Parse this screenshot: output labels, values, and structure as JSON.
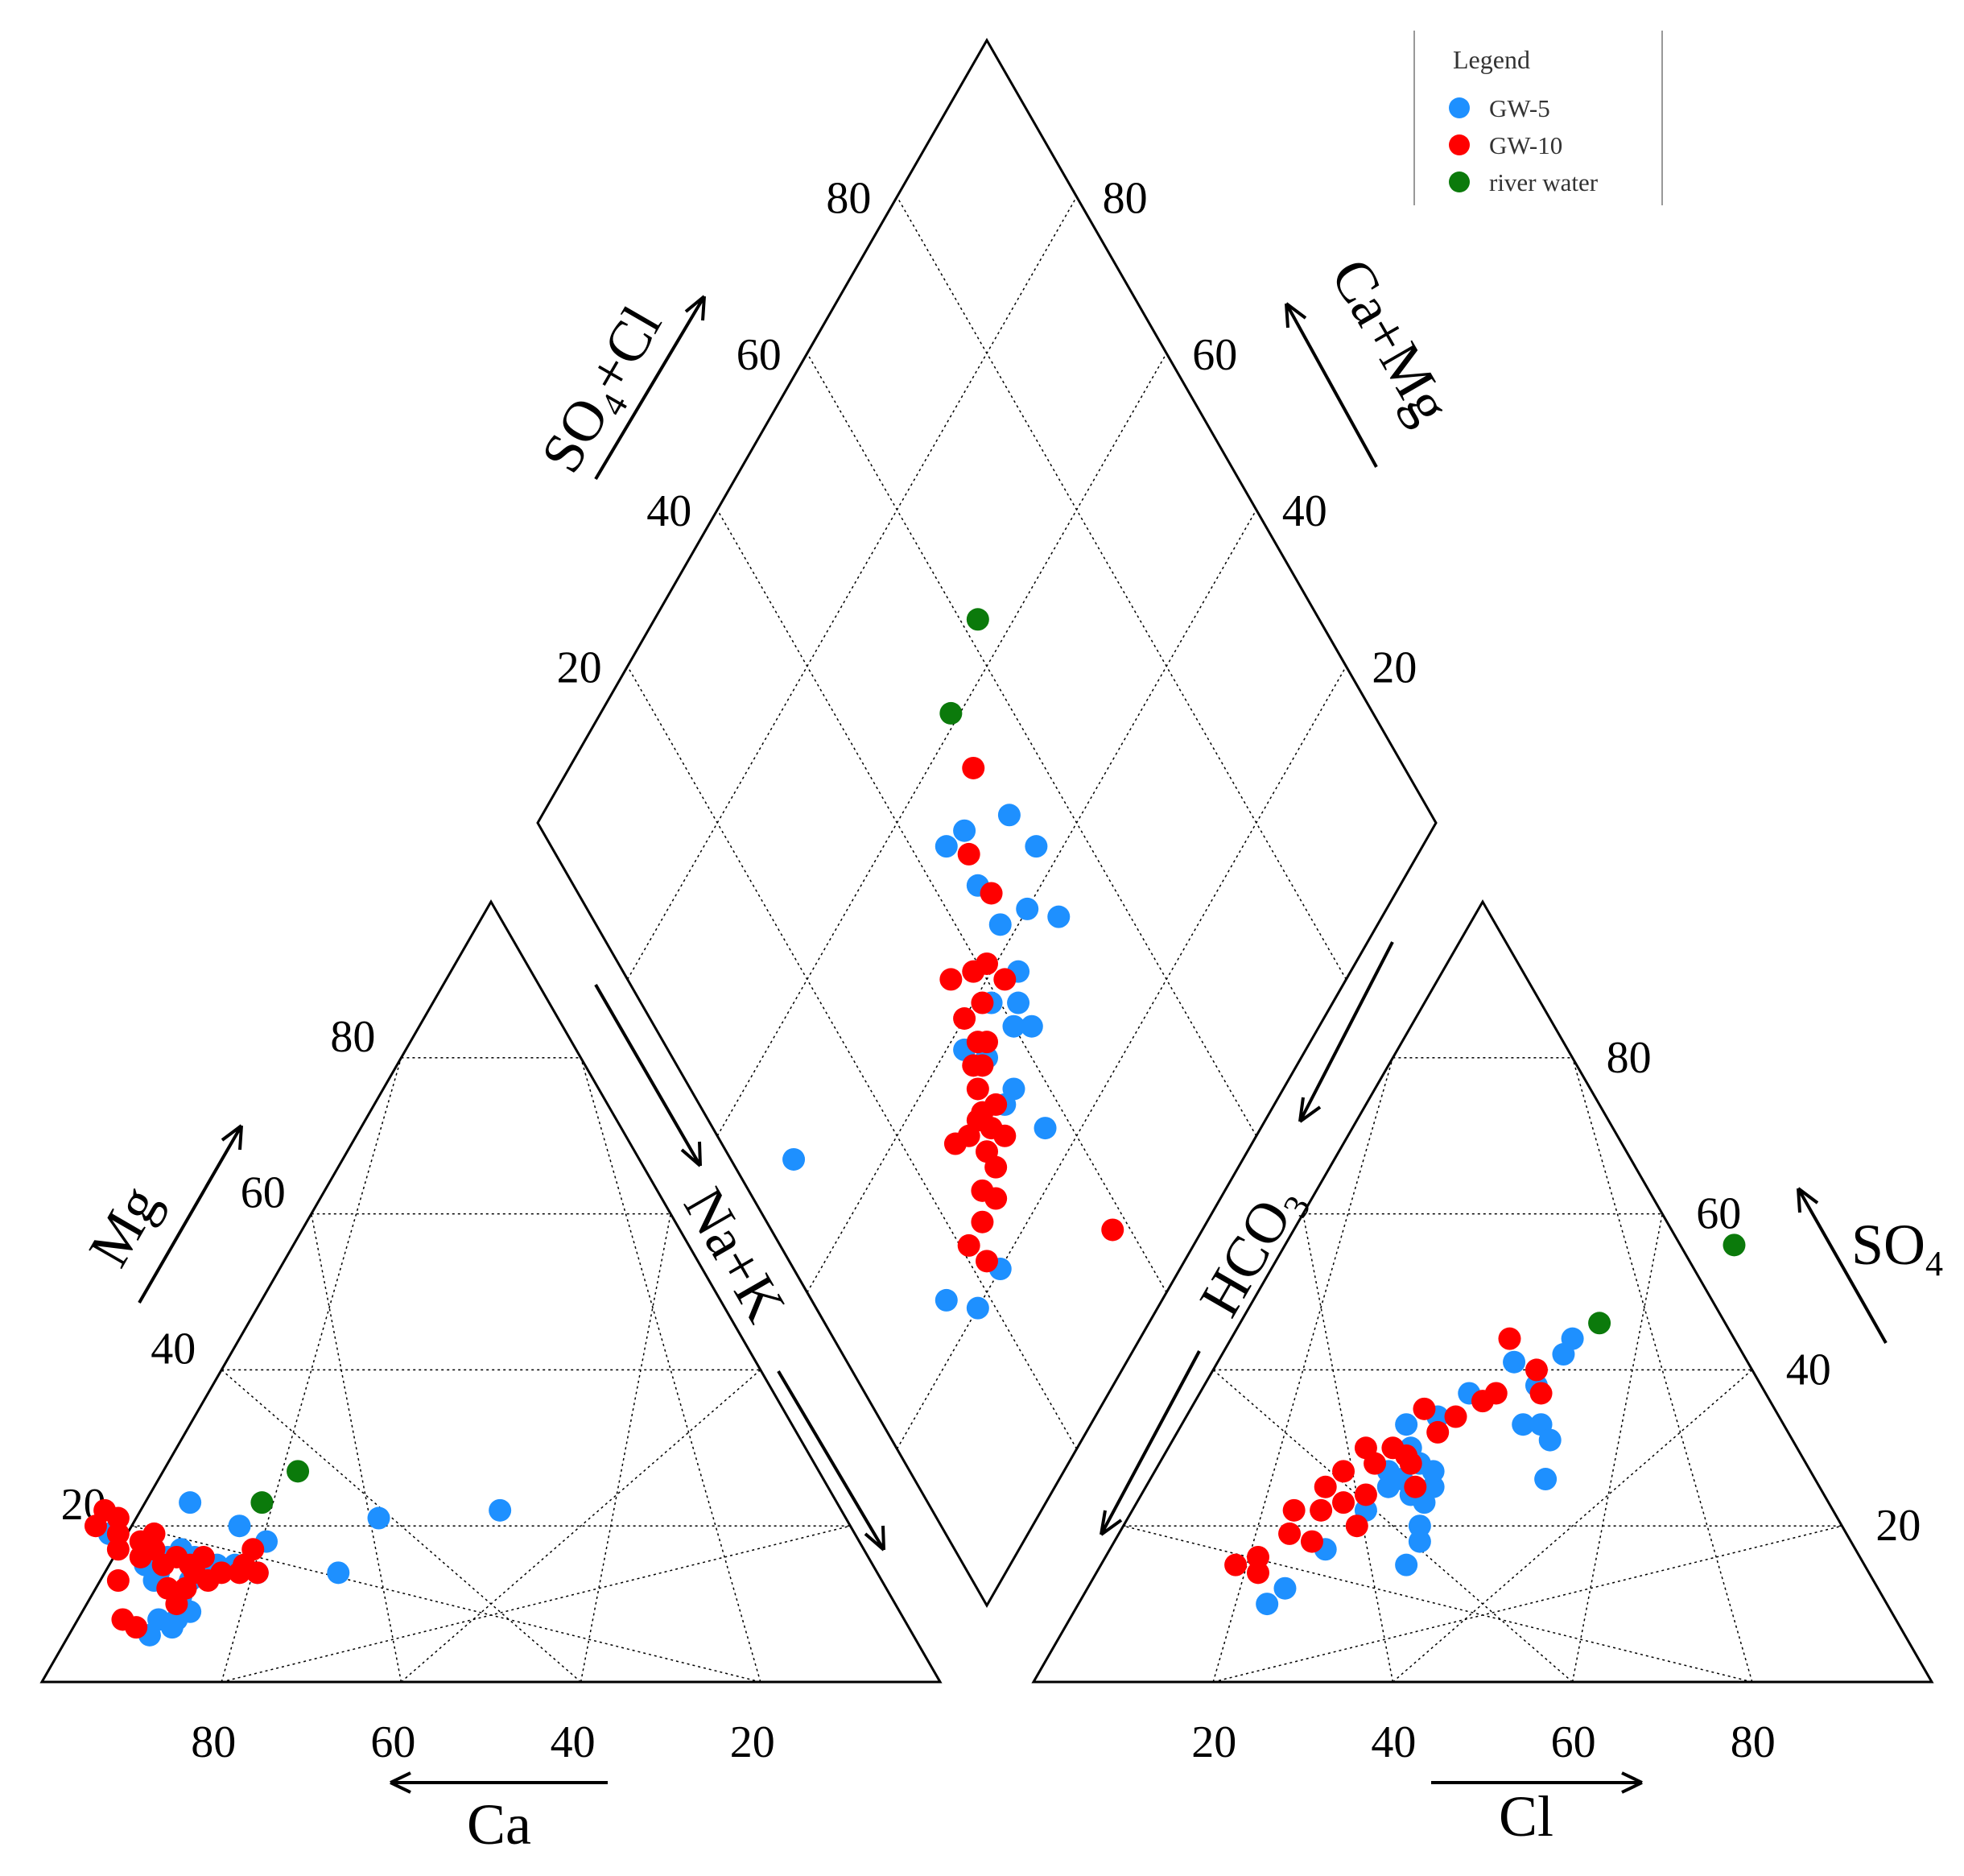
{
  "chart_data": {
    "type": "piper",
    "title": "",
    "legend": {
      "title": "Legend",
      "placement": "top-right",
      "entries": [
        {
          "name": "GW-5",
          "color": "#1e90ff"
        },
        {
          "name": "GW-10",
          "color": "#ff0000"
        },
        {
          "name": "river water",
          "color": "#0b7a0b"
        }
      ]
    },
    "cation_triangle": {
      "axes": {
        "mg_label": "Mg",
        "ca_label": "Ca",
        "nak_label": "Na+K"
      },
      "mg_ticks": [
        "20",
        "40",
        "60",
        "80"
      ],
      "ca_ticks": [
        "80",
        "60",
        "40",
        "20"
      ],
      "range": [
        0,
        100
      ]
    },
    "anion_triangle": {
      "axes": {
        "so4_label": "SO",
        "so4_sub": "4",
        "cl_label": "Cl",
        "hco3_label": "HCO",
        "hco3_sub": "3"
      },
      "so4_ticks": [
        "20",
        "40",
        "60",
        "80"
      ],
      "cl_ticks": [
        "20",
        "40",
        "60",
        "80"
      ],
      "range": [
        0,
        100
      ]
    },
    "diamond": {
      "axes": {
        "left_label_a": "SO",
        "left_sub": "4",
        "left_label_b": "+Cl",
        "right_label": "Ca+Mg"
      },
      "left_ticks": [
        "20",
        "40",
        "60",
        "80"
      ],
      "right_ticks": [
        "20",
        "40",
        "60",
        "80"
      ],
      "range": [
        0,
        100
      ]
    },
    "series": [
      {
        "name": "GW-5",
        "cation": [
          [
            81,
            15
          ],
          [
            80,
            14
          ],
          [
            81,
            13
          ],
          [
            78,
            16
          ],
          [
            76,
            17
          ],
          [
            75,
            16
          ],
          [
            73,
            15
          ],
          [
            71,
            15
          ],
          [
            69,
            14
          ],
          [
            66,
            18
          ],
          [
            72,
            23
          ],
          [
            68,
            20
          ],
          [
            60,
            14
          ],
          [
            52,
            21
          ],
          [
            38,
            22
          ],
          [
            83,
            8
          ],
          [
            81,
            8
          ],
          [
            79,
            9
          ],
          [
            83,
            19
          ],
          [
            85,
            6
          ],
          [
            76,
            15
          ],
          [
            74,
            14
          ],
          [
            79,
            11
          ],
          [
            77,
            13
          ],
          [
            82,
            7
          ]
        ],
        "anion": [
          [
            34,
            18
          ],
          [
            24,
            17
          ],
          [
            26,
            22
          ],
          [
            30,
            24
          ],
          [
            32,
            25
          ],
          [
            31,
            27
          ],
          [
            29,
            28
          ],
          [
            28,
            26
          ],
          [
            27,
            30
          ],
          [
            25,
            33
          ],
          [
            28,
            34
          ],
          [
            26,
            27
          ],
          [
            30,
            37
          ],
          [
            33,
            41
          ],
          [
            38,
            42
          ],
          [
            38,
            33
          ],
          [
            40,
            33
          ],
          [
            42,
            31
          ],
          [
            44,
            26
          ],
          [
            33,
            20
          ],
          [
            34,
            15
          ],
          [
            22,
            12
          ],
          [
            21,
            10
          ],
          [
            27,
            25
          ],
          [
            37,
            38
          ],
          [
            38,
            44
          ],
          [
            32,
            23
          ]
        ],
        "diamond": [
          [
            50,
            7
          ],
          [
            24,
            15
          ],
          [
            20,
            23
          ],
          [
            30,
            36
          ],
          [
            38,
            33
          ],
          [
            35,
            35
          ],
          [
            38,
            39
          ],
          [
            34,
            40
          ],
          [
            32,
            42
          ],
          [
            35,
            42
          ],
          [
            37,
            44
          ],
          [
            42,
            45
          ],
          [
            40,
            49
          ],
          [
            43,
            54
          ],
          [
            48,
            53
          ],
          [
            52,
            47
          ],
          [
            47,
            45
          ],
          [
            53,
            44
          ],
          [
            20,
            18
          ],
          [
            24,
            37
          ],
          [
            36,
            52
          ],
          [
            30,
            34
          ]
        ]
      },
      {
        "name": "GW-10",
        "cation": [
          [
            87,
            8
          ],
          [
            86,
            7
          ],
          [
            85,
            13
          ],
          [
            84,
            20
          ],
          [
            82,
            19
          ],
          [
            81,
            21
          ],
          [
            80,
            18
          ],
          [
            79,
            17
          ],
          [
            78,
            19
          ],
          [
            77,
            16
          ],
          [
            76,
            15
          ],
          [
            74,
            16
          ],
          [
            73,
            14
          ],
          [
            70,
            15
          ],
          [
            68,
            17
          ],
          [
            75,
            13
          ],
          [
            78,
            12
          ],
          [
            80,
            10
          ],
          [
            82,
            22
          ],
          [
            81,
            16
          ],
          [
            79,
            15
          ],
          [
            76,
            14
          ],
          [
            71,
            14
          ],
          [
            69,
            14
          ],
          [
            83,
            17
          ],
          [
            80,
            12
          ]
        ],
        "anion": [
          [
            17,
            16
          ],
          [
            19,
            19
          ],
          [
            21,
            22
          ],
          [
            23,
            23
          ],
          [
            21,
            27
          ],
          [
            22,
            30
          ],
          [
            24,
            28
          ],
          [
            25,
            30
          ],
          [
            27,
            29
          ],
          [
            26,
            35
          ],
          [
            29,
            32
          ],
          [
            30,
            34
          ],
          [
            32,
            36
          ],
          [
            33,
            37
          ],
          [
            36,
            40
          ],
          [
            38,
            37
          ],
          [
            31,
            44
          ],
          [
            18,
            14
          ],
          [
            22,
            18
          ],
          [
            26,
            20
          ],
          [
            25,
            24
          ],
          [
            28,
            28
          ],
          [
            30,
            25
          ],
          [
            15,
            15
          ],
          [
            18,
            22
          ],
          [
            20,
            25
          ]
        ],
        "diamond": [
          [
            22,
            22
          ],
          [
            25,
            24
          ],
          [
            27,
            26
          ],
          [
            25,
            27
          ],
          [
            27,
            29
          ],
          [
            29,
            29
          ],
          [
            32,
            30
          ],
          [
            32,
            31
          ],
          [
            31,
            33
          ],
          [
            34,
            32
          ],
          [
            36,
            33
          ],
          [
            37,
            35
          ],
          [
            36,
            36
          ],
          [
            40,
            35
          ],
          [
            39,
            38
          ],
          [
            44,
            36
          ],
          [
            42,
            39
          ],
          [
            45,
            46
          ],
          [
            50,
            46
          ],
          [
            55,
            52
          ],
          [
            25,
            21
          ],
          [
            10,
            38
          ],
          [
            28,
            32
          ],
          [
            33,
            26
          ],
          [
            35,
            34
          ],
          [
            38,
            42
          ],
          [
            41,
            41
          ],
          [
            30,
            31
          ],
          [
            32,
            28
          ]
        ]
      },
      {
        "name": "river water",
        "cation": [
          [
            64,
            23
          ],
          [
            58,
            27
          ]
        ],
        "anion": [
          [
            40,
            46
          ],
          [
            50,
            56
          ]
        ],
        "diamond": [
          [
            61,
            53
          ],
          [
            64,
            62
          ]
        ]
      }
    ]
  }
}
